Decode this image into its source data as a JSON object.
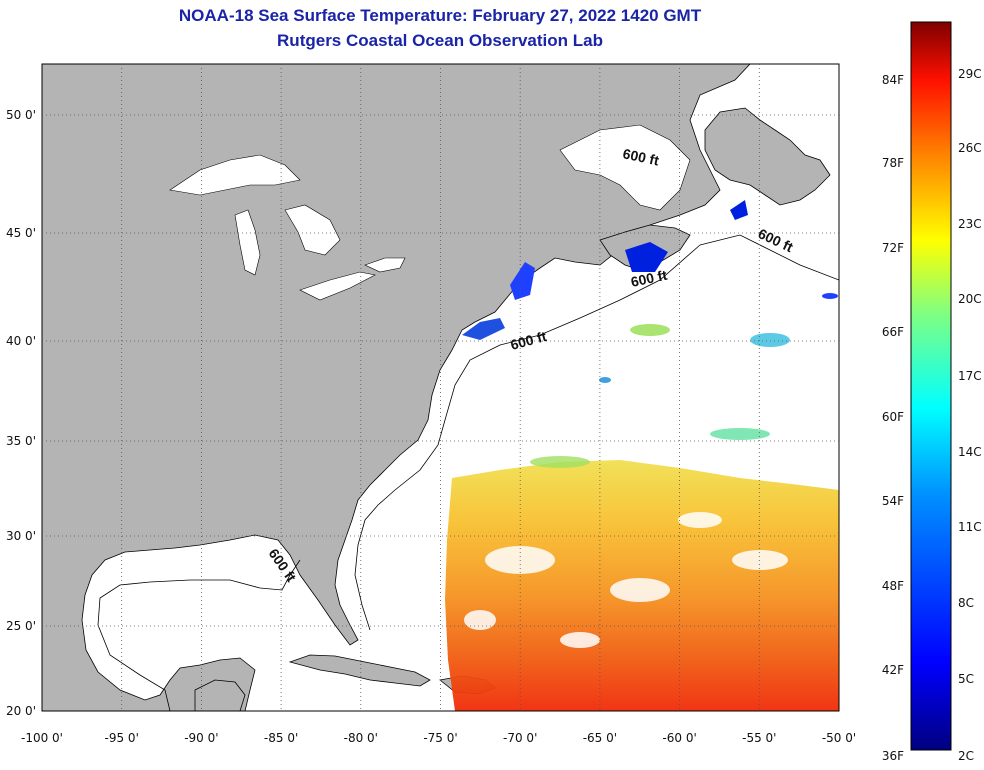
{
  "title": "NOAA-18 Sea Surface Temperature:  February 27, 2022 1420 GMT",
  "subtitle": "Rutgers Coastal Ocean Observation Lab",
  "longitude_ticks": [
    "-100 0'",
    "-95 0'",
    "-90 0'",
    "-85 0'",
    "-80 0'",
    "-75 0'",
    "-70 0'",
    "-65 0'",
    "-60 0'",
    "-55 0'",
    "-50 0'"
  ],
  "latitude_ticks": [
    "50 0'",
    "45 0'",
    "40 0'",
    "35 0'",
    "30 0'",
    "25 0'",
    "20 0'"
  ],
  "colorbar": {
    "fahrenheit_labels": [
      "84F",
      "78F",
      "72F",
      "66F",
      "60F",
      "54F",
      "48F",
      "42F",
      "36F"
    ],
    "celsius_labels": [
      "29C",
      "26C",
      "23C",
      "20C",
      "17C",
      "14C",
      "11C",
      "8C",
      "5C",
      "2C"
    ],
    "colors": [
      "#00007f",
      "#0000ff",
      "#0080ff",
      "#00ffff",
      "#80ff80",
      "#ffff00",
      "#ff8000",
      "#ff0000",
      "#7f0000"
    ]
  },
  "contour_labels": [
    "600 ft",
    "600 ft",
    "600 ft",
    "600 ft",
    "600 ft"
  ],
  "colors": {
    "land": "#b4b4b4",
    "ocean": "#ffffff",
    "grid": "#666666",
    "title": "#1a24a8"
  }
}
